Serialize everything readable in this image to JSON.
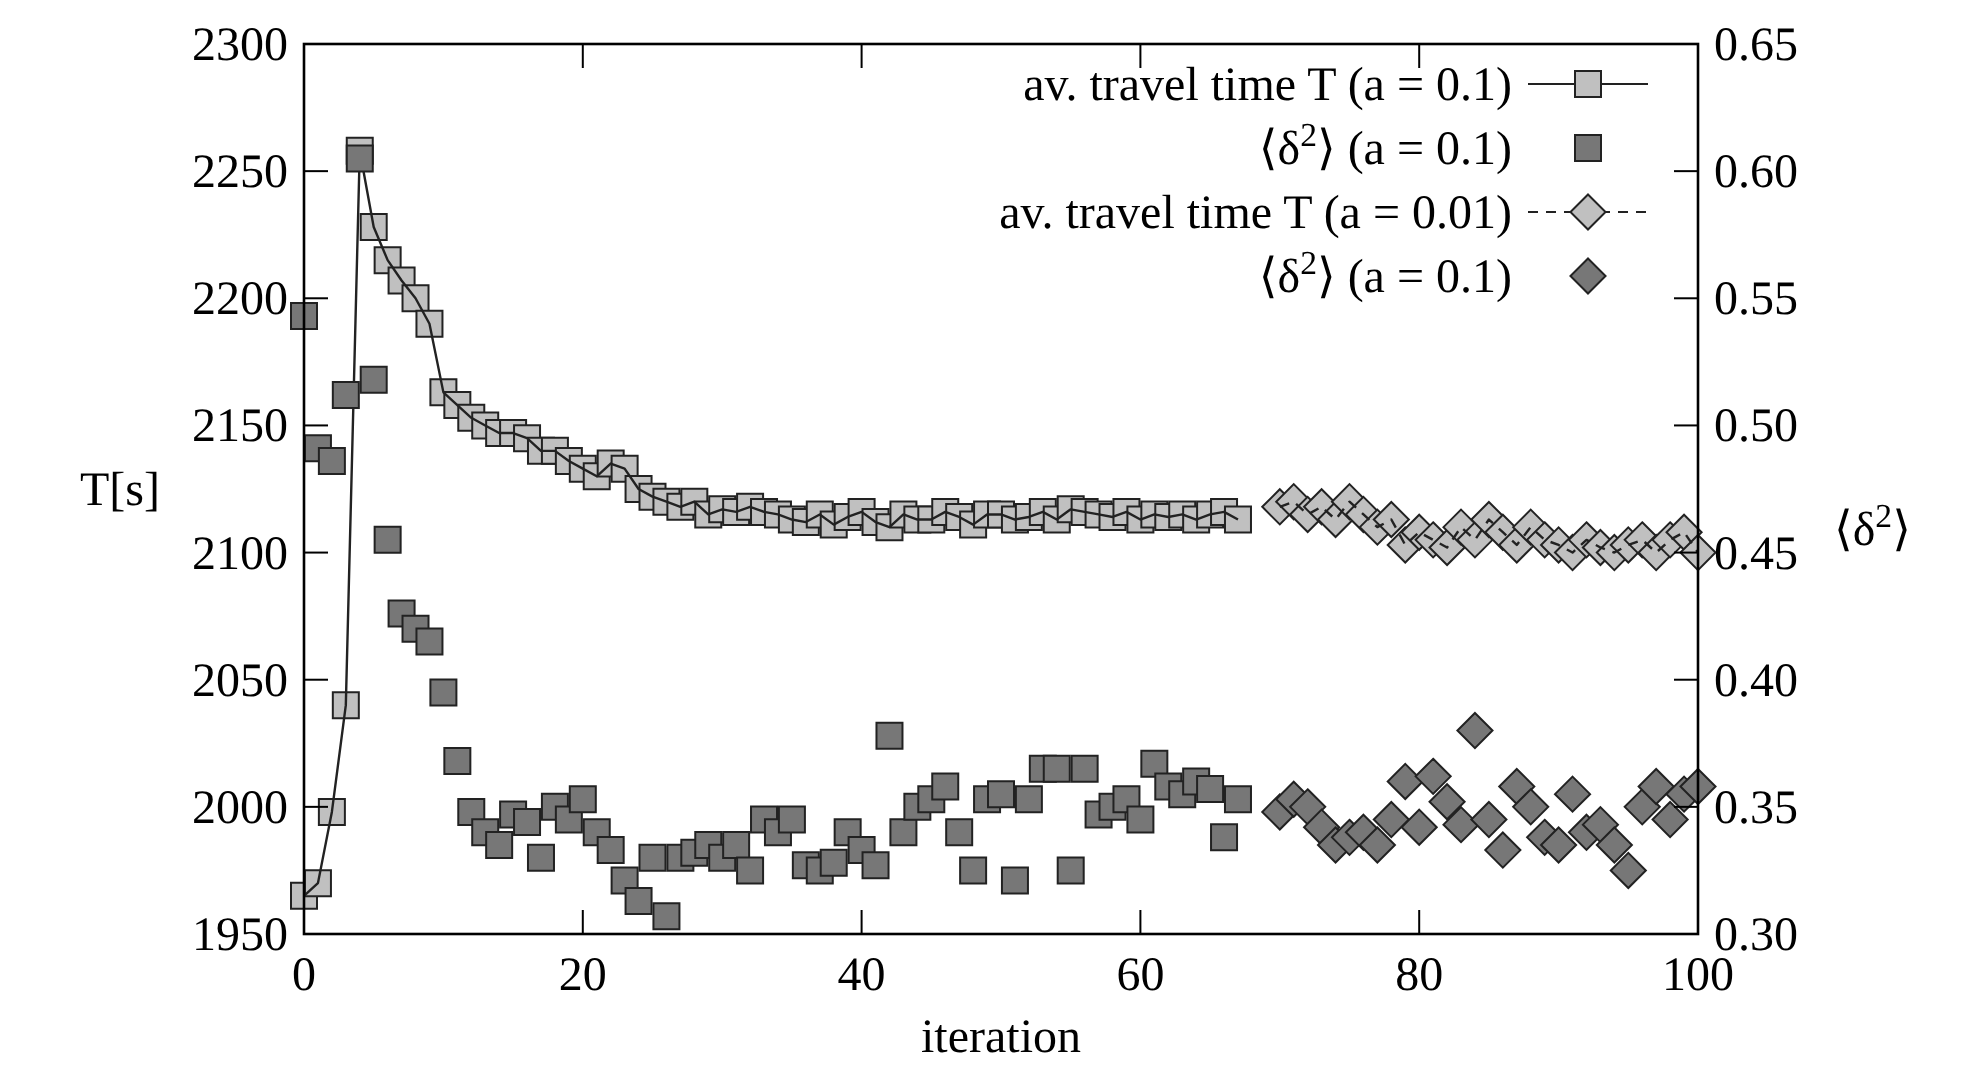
{
  "chart_data": {
    "type": "line",
    "xlabel": "iteration",
    "ylabel": "T[s]",
    "y2label": "⟨δ$^{2}$⟩",
    "xlim": [
      0,
      100
    ],
    "xticks": [
      0,
      20,
      40,
      60,
      80,
      100
    ],
    "ylim": [
      1950,
      2300
    ],
    "yticks": [
      1950,
      2000,
      2050,
      2100,
      2150,
      2200,
      2250,
      2300
    ],
    "y2lim": [
      0.3,
      0.65
    ],
    "y2ticks": [
      {
        "value": 0.3,
        "label": "0.30"
      },
      0.35,
      {
        "value": 0.4,
        "label": "0.40"
      },
      0.45,
      {
        "value": 0.5,
        "label": "0.50"
      },
      0.55,
      {
        "value": 0.6,
        "label": "0.60"
      },
      0.65
    ],
    "grid": false,
    "legend": "top right",
    "series": [
      {
        "name": "av. travel time T (a = 0.1)",
        "marker": "square",
        "line_style": "solid",
        "color": "#c0c0c0",
        "x": [
          0,
          1,
          2,
          3,
          4,
          5,
          6,
          7,
          8,
          9,
          10,
          11,
          12,
          13,
          14,
          15,
          16,
          17,
          18,
          19,
          20,
          21,
          22,
          23,
          24,
          25,
          26,
          27,
          28,
          29,
          30,
          31,
          32,
          33,
          34,
          35,
          36,
          37,
          38,
          39,
          40,
          41,
          42,
          43,
          44,
          45,
          46,
          47,
          48,
          49,
          50,
          51,
          52,
          53,
          54,
          55,
          56,
          57,
          58,
          59,
          60,
          61,
          62,
          63,
          64,
          65,
          66,
          67
        ],
        "values": [
          1965,
          1970,
          1998,
          2040,
          2258,
          2228,
          2215,
          2207,
          2200,
          2190,
          2163,
          2158,
          2153,
          2150,
          2147,
          2147,
          2145,
          2140,
          2140,
          2136,
          2133,
          2130,
          2135,
          2133,
          2125,
          2122,
          2120,
          2118,
          2120,
          2115,
          2117,
          2116,
          2118,
          2116,
          2115,
          2113,
          2112,
          2115,
          2111,
          2114,
          2116,
          2112,
          2110,
          2115,
          2113,
          2113,
          2116,
          2114,
          2111,
          2115,
          2115,
          2113,
          2114,
          2116,
          2113,
          2117,
          2116,
          2115,
          2114,
          2116,
          2113,
          2115,
          2114,
          2115,
          2113,
          2115,
          2116,
          2113
        ]
      },
      {
        "name": "⟨δ$^{2}$⟩ (a = 0.1)",
        "type": "scatter",
        "marker": "square",
        "axis": "y2",
        "color": "#777777",
        "x": [
          0,
          1,
          2,
          3,
          4,
          5,
          6,
          7,
          8,
          9,
          10,
          11,
          12,
          13,
          14,
          15,
          16,
          17,
          18,
          19,
          20,
          21,
          22,
          23,
          24,
          25,
          26,
          27,
          28,
          29,
          30,
          31,
          32,
          33,
          34,
          35,
          36,
          37,
          38,
          39,
          40,
          41,
          42,
          43,
          44,
          45,
          46,
          47,
          48,
          49,
          50,
          51,
          52,
          53,
          54,
          55,
          56,
          57,
          58,
          59,
          60,
          61,
          62,
          63,
          64,
          65,
          66,
          67
        ],
        "values": [
          0.543,
          0.491,
          0.486,
          0.512,
          0.605,
          0.518,
          0.455,
          0.426,
          0.42,
          0.415,
          0.395,
          0.368,
          0.348,
          0.34,
          0.335,
          0.347,
          0.344,
          0.33,
          0.35,
          0.345,
          0.353,
          0.34,
          0.333,
          0.321,
          0.313,
          0.33,
          0.307,
          0.33,
          0.332,
          0.335,
          0.33,
          0.335,
          0.325,
          0.345,
          0.34,
          0.345,
          0.327,
          0.325,
          0.328,
          0.34,
          0.333,
          0.327,
          0.378,
          0.34,
          0.35,
          0.353,
          0.358,
          0.34,
          0.325,
          0.353,
          0.355,
          0.321,
          0.353,
          0.365,
          0.365,
          0.325,
          0.365,
          0.347,
          0.35,
          0.353,
          0.345,
          0.367,
          0.358,
          0.355,
          0.36,
          0.357,
          0.338,
          0.353
        ]
      },
      {
        "name": "av. travel time T (a = 0.01)",
        "marker": "diamond",
        "line_style": "dashed",
        "color": "#c0c0c0",
        "x": [
          70,
          71,
          72,
          73,
          74,
          75,
          76,
          77,
          78,
          79,
          80,
          81,
          82,
          83,
          84,
          85,
          86,
          87,
          88,
          89,
          90,
          91,
          92,
          93,
          94,
          95,
          96,
          97,
          98,
          99,
          100
        ],
        "values": [
          2118,
          2120,
          2115,
          2118,
          2113,
          2120,
          2115,
          2110,
          2113,
          2103,
          2108,
          2105,
          2102,
          2110,
          2105,
          2113,
          2108,
          2103,
          2110,
          2105,
          2103,
          2100,
          2105,
          2102,
          2100,
          2103,
          2105,
          2100,
          2105,
          2108,
          2100
        ]
      },
      {
        "name": "⟨δ$^{2}$⟩ (a = 0.1)",
        "type": "scatter",
        "marker": "diamond",
        "axis": "y2",
        "color": "#777777",
        "x": [
          70,
          71,
          72,
          73,
          74,
          75,
          76,
          77,
          78,
          79,
          80,
          81,
          82,
          83,
          84,
          85,
          86,
          87,
          88,
          89,
          90,
          91,
          92,
          93,
          94,
          95,
          96,
          97,
          98,
          99,
          100
        ],
        "values": [
          0.348,
          0.353,
          0.35,
          0.342,
          0.335,
          0.338,
          0.34,
          0.335,
          0.345,
          0.36,
          0.342,
          0.362,
          0.352,
          0.343,
          0.38,
          0.345,
          0.333,
          0.358,
          0.35,
          0.338,
          0.335,
          0.355,
          0.34,
          0.343,
          0.335,
          0.325,
          0.35,
          0.358,
          0.345,
          0.355,
          0.358
        ]
      }
    ]
  }
}
